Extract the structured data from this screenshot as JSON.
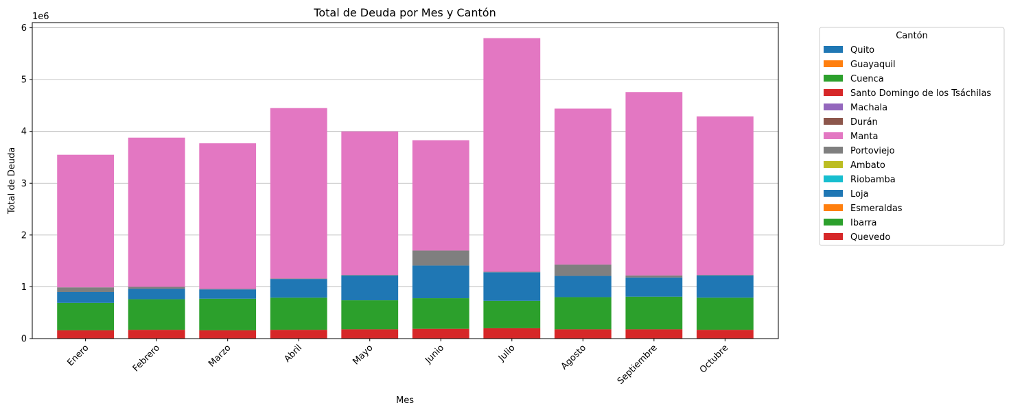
{
  "chart_data": {
    "type": "bar",
    "stacked": true,
    "title": "Total de Deuda por Mes y Cantón",
    "xlabel": "Mes",
    "ylabel": "Total de Deuda",
    "y_offset_label": "1e6",
    "y_scale": 1000000,
    "ylim": [
      0,
      6100000
    ],
    "yticks": [
      0,
      1,
      2,
      3,
      4,
      5,
      6
    ],
    "grid": "y",
    "legend": {
      "title": "Cantón",
      "placement": "outside-right"
    },
    "categories": [
      "Enero",
      "Febrero",
      "Marzo",
      "Abril",
      "Mayo",
      "Junio",
      "Julio",
      "Agosto",
      "Septiembre",
      "Octubre"
    ],
    "series": [
      {
        "name": "Quito",
        "color": "#1f77b4",
        "values": [
          0,
          0,
          0,
          0,
          0,
          0,
          0,
          0,
          0,
          0
        ]
      },
      {
        "name": "Guayaquil",
        "color": "#ff7f0e",
        "values": [
          0,
          0,
          0,
          0,
          0,
          0,
          0,
          0,
          0,
          0
        ]
      },
      {
        "name": "Cuenca",
        "color": "#2ca02c",
        "values": [
          0,
          0,
          0,
          0,
          0,
          0,
          0,
          0,
          0,
          0
        ]
      },
      {
        "name": "Santo Domingo de los Tsáchilas",
        "color": "#d62728",
        "values": [
          0,
          0,
          0,
          0,
          0,
          0,
          0,
          0,
          0,
          0
        ]
      },
      {
        "name": "Machala",
        "color": "#9467bd",
        "values": [
          0,
          0,
          0,
          0,
          0,
          0,
          0,
          0,
          0,
          0
        ]
      },
      {
        "name": "Durán",
        "color": "#8c564b",
        "values": [
          0,
          0,
          0,
          0,
          0,
          0,
          0,
          0,
          0,
          0
        ]
      },
      {
        "name": "Manta",
        "color": "#e377c2",
        "values": [
          2560000,
          2880000,
          2810000,
          3290000,
          2770000,
          2130000,
          4510000,
          3010000,
          3540000,
          3060000
        ]
      },
      {
        "name": "Portoviejo",
        "color": "#7f7f7f",
        "values": [
          90000,
          40000,
          10000,
          10000,
          10000,
          290000,
          10000,
          220000,
          40000,
          10000
        ]
      },
      {
        "name": "Ambato",
        "color": "#bcbd22",
        "values": [
          0,
          0,
          0,
          0,
          0,
          0,
          0,
          0,
          0,
          0
        ]
      },
      {
        "name": "Riobamba",
        "color": "#17becf",
        "values": [
          0,
          0,
          0,
          0,
          0,
          0,
          0,
          0,
          0,
          0
        ]
      },
      {
        "name": "Loja",
        "color": "#1f77b4",
        "values": [
          210000,
          200000,
          180000,
          360000,
          480000,
          630000,
          550000,
          410000,
          370000,
          430000
        ]
      },
      {
        "name": "Esmeraldas",
        "color": "#ff7f0e",
        "values": [
          0,
          0,
          0,
          0,
          0,
          0,
          0,
          0,
          0,
          0
        ]
      },
      {
        "name": "Ibarra",
        "color": "#2ca02c",
        "values": [
          530000,
          590000,
          610000,
          620000,
          560000,
          590000,
          530000,
          620000,
          630000,
          620000
        ]
      },
      {
        "name": "Quevedo",
        "color": "#d62728",
        "values": [
          160000,
          170000,
          160000,
          170000,
          180000,
          190000,
          200000,
          180000,
          180000,
          170000
        ]
      }
    ],
    "stack_order": [
      "Quevedo",
      "Ibarra",
      "Loja",
      "Portoviejo",
      "Manta",
      "Quito",
      "Guayaquil",
      "Cuenca",
      "Santo Domingo de los Tsáchilas",
      "Machala",
      "Durán",
      "Ambato",
      "Riobamba",
      "Esmeraldas"
    ]
  }
}
